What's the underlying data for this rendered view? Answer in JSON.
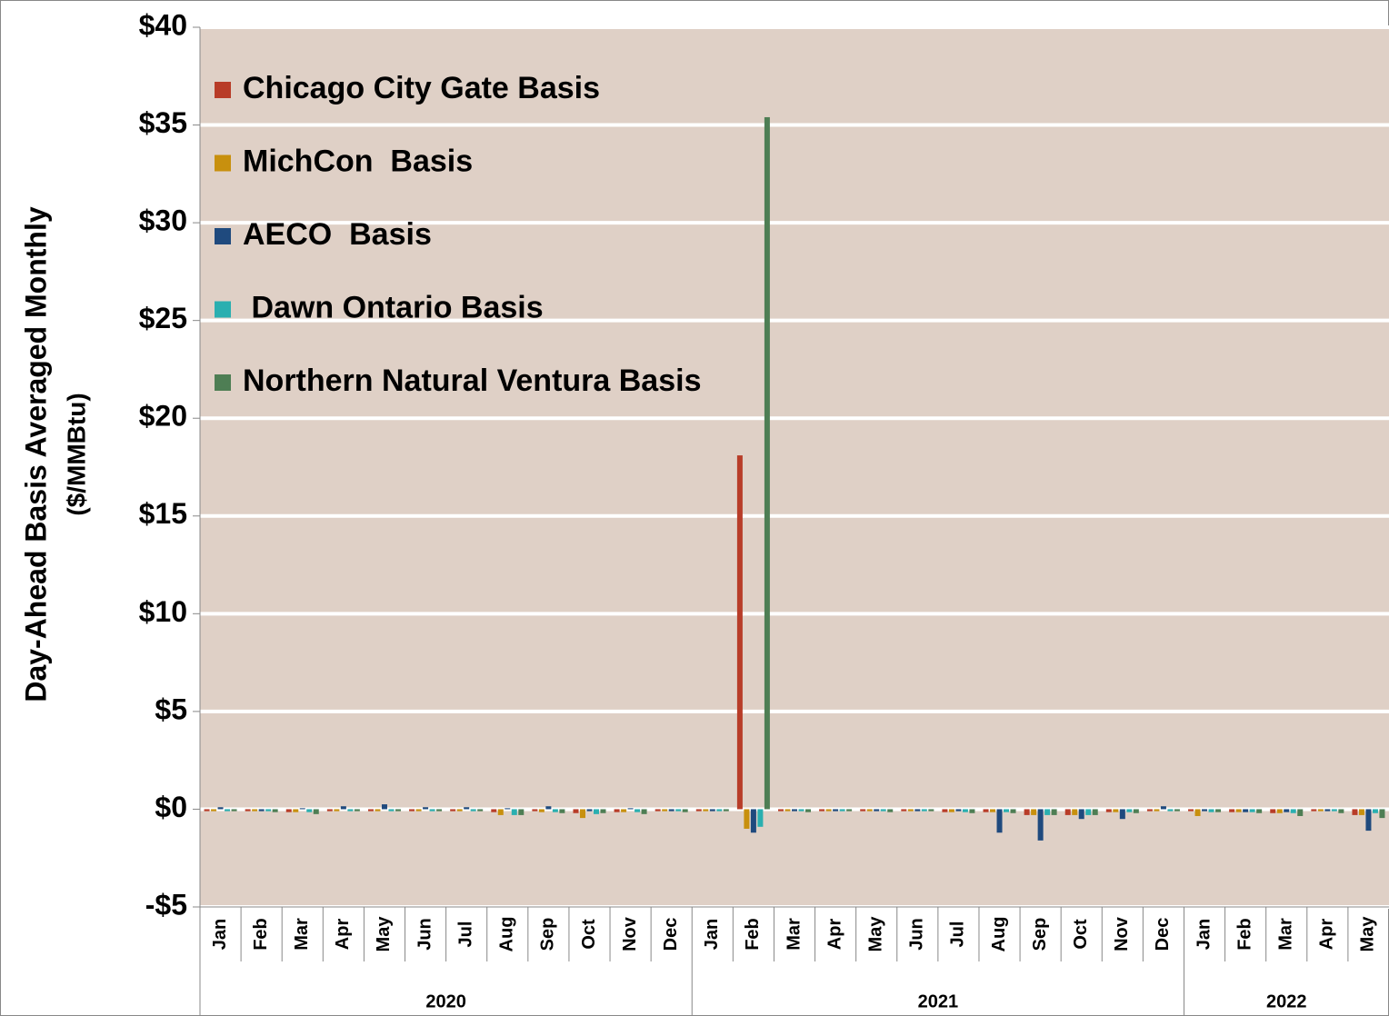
{
  "chart_data": {
    "type": "bar",
    "y_label": [
      "Day-Ahead Basis Averaged Monthly",
      "($/MMBtu)"
    ],
    "groups": [
      {
        "label": "2020",
        "categories": [
          "Jan",
          "Feb",
          "Mar",
          "Apr",
          "May",
          "Jun",
          "Jul",
          "Aug",
          "Sep",
          "Oct",
          "Nov",
          "Dec"
        ]
      },
      {
        "label": "2021",
        "categories": [
          "Jan",
          "Feb",
          "Mar",
          "Apr",
          "May",
          "Jun",
          "Jul",
          "Aug",
          "Sep",
          "Oct",
          "Nov",
          "Dec"
        ]
      },
      {
        "label": "2022",
        "categories": [
          "Jan",
          "Feb",
          "Mar",
          "Apr",
          "May"
        ]
      }
    ],
    "series": [
      {
        "name": "Chicago City Gate Basis",
        "color": "#b83c28",
        "values": [
          -0.1,
          -0.1,
          -0.15,
          -0.1,
          -0.1,
          -0.1,
          -0.1,
          -0.15,
          -0.1,
          -0.2,
          -0.15,
          -0.1,
          -0.1,
          18.1,
          -0.1,
          -0.1,
          -0.1,
          -0.1,
          -0.15,
          -0.15,
          -0.3,
          -0.3,
          -0.15,
          -0.1,
          -0.1,
          -0.15,
          -0.2,
          -0.1,
          -0.3
        ]
      },
      {
        "name": "MichCon  Basis",
        "color": "#c8900e",
        "values": [
          -0.1,
          -0.1,
          -0.15,
          -0.1,
          -0.1,
          -0.1,
          -0.1,
          -0.3,
          -0.15,
          -0.45,
          -0.15,
          -0.1,
          -0.1,
          -1.0,
          -0.1,
          -0.1,
          -0.1,
          -0.1,
          -0.15,
          -0.15,
          -0.3,
          -0.3,
          -0.15,
          -0.1,
          -0.35,
          -0.15,
          -0.2,
          -0.1,
          -0.3
        ]
      },
      {
        "name": "AECO  Basis",
        "color": "#1f4a7e",
        "values": [
          0.1,
          -0.1,
          0.05,
          0.15,
          0.25,
          0.1,
          0.1,
          0.05,
          0.15,
          -0.1,
          0.05,
          -0.1,
          -0.1,
          -1.2,
          -0.1,
          -0.1,
          -0.1,
          -0.1,
          -0.1,
          -1.2,
          -1.6,
          -0.5,
          -0.5,
          0.15,
          -0.1,
          -0.15,
          -0.15,
          -0.1,
          -1.1
        ]
      },
      {
        "name": " Dawn Ontario Basis",
        "color": "#2aafb0",
        "values": [
          -0.1,
          -0.1,
          -0.15,
          -0.1,
          -0.1,
          -0.1,
          -0.1,
          -0.3,
          -0.15,
          -0.25,
          -0.15,
          -0.1,
          -0.1,
          -0.9,
          -0.1,
          -0.1,
          -0.1,
          -0.1,
          -0.15,
          -0.15,
          -0.3,
          -0.3,
          -0.15,
          -0.1,
          -0.15,
          -0.15,
          -0.2,
          -0.1,
          -0.2
        ]
      },
      {
        "name": "Northern Natural Ventura Basis",
        "color": "#4e7e54",
        "values": [
          -0.1,
          -0.15,
          -0.25,
          -0.1,
          -0.1,
          -0.1,
          -0.1,
          -0.3,
          -0.2,
          -0.2,
          -0.25,
          -0.15,
          -0.1,
          35.4,
          -0.15,
          -0.1,
          -0.15,
          -0.1,
          -0.2,
          -0.2,
          -0.3,
          -0.3,
          -0.2,
          -0.1,
          -0.15,
          -0.2,
          -0.35,
          -0.2,
          -0.45
        ]
      }
    ],
    "ylim": [
      -5,
      40
    ],
    "yticks": [
      {
        "value": -5,
        "label": "-$5"
      },
      {
        "value": 0,
        "label": "$0"
      },
      {
        "value": 5,
        "label": "$5"
      },
      {
        "value": 10,
        "label": "$10"
      },
      {
        "value": 15,
        "label": "$15"
      },
      {
        "value": 20,
        "label": "$20"
      },
      {
        "value": 25,
        "label": "$25"
      },
      {
        "value": 30,
        "label": "$30"
      },
      {
        "value": 35,
        "label": "$35"
      },
      {
        "value": 40,
        "label": "$40"
      }
    ],
    "grid": true,
    "legend": "upper-left"
  }
}
